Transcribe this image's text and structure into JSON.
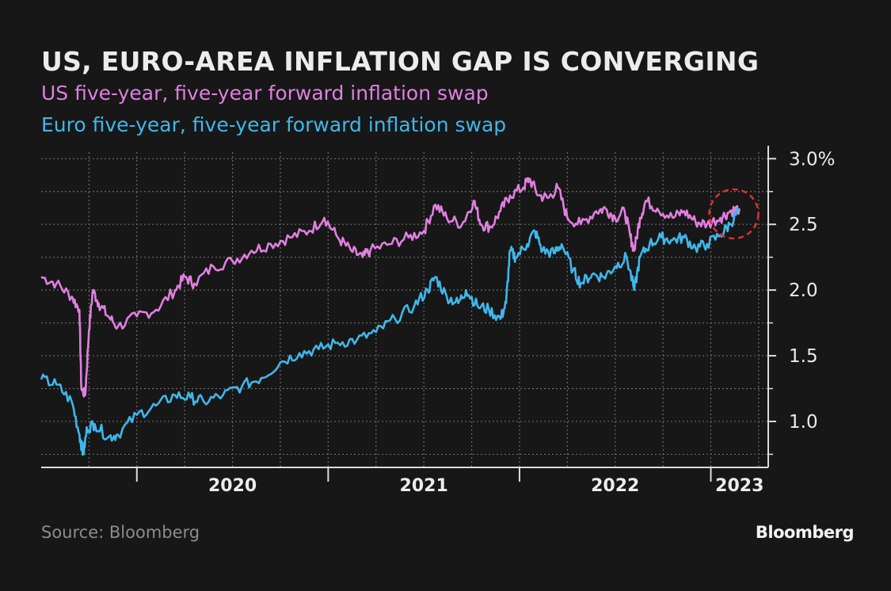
{
  "header": {
    "title": "US, EURO-AREA INFLATION GAP IS CONVERGING"
  },
  "footer": {
    "source": "Source: Bloomberg",
    "logo_text": "Bloomberg"
  },
  "colors": {
    "background": "#171717",
    "us_series": "#e07fe0",
    "euro_series": "#3fb7ea",
    "highlight_circle": "#e0302a",
    "grid": "#6a6a6a",
    "text": "#ececec"
  },
  "chart_data": {
    "type": "line",
    "x_axis": {
      "labels": [
        "2020",
        "2021",
        "2022",
        "2023"
      ],
      "year_starts": [
        2020,
        2021,
        2022,
        2023
      ],
      "range": [
        2019.5,
        2023.3
      ]
    },
    "y_axis": {
      "position": "right",
      "range": [
        0.65,
        3.05
      ],
      "ticks": [
        1.0,
        1.5,
        2.0,
        2.5,
        3.0
      ],
      "tick_labels": [
        "1.0",
        "1.5",
        "2.0",
        "2.5",
        "3.0%"
      ]
    },
    "grid": true,
    "legend": "subtitle-colored-text",
    "series": [
      {
        "name": "US five-year, five-year forward inflation swap",
        "color": "#e07fe0",
        "points": [
          [
            2019.5,
            2.1
          ],
          [
            2019.58,
            2.05
          ],
          [
            2019.66,
            1.95
          ],
          [
            2019.7,
            1.85
          ],
          [
            2019.71,
            1.25
          ],
          [
            2019.73,
            1.2
          ],
          [
            2019.75,
            1.7
          ],
          [
            2019.77,
            2.0
          ],
          [
            2019.8,
            1.9
          ],
          [
            2019.85,
            1.8
          ],
          [
            2019.9,
            1.72
          ],
          [
            2020.0,
            1.8
          ],
          [
            2020.1,
            1.85
          ],
          [
            2020.2,
            2.0
          ],
          [
            2020.25,
            2.1
          ],
          [
            2020.3,
            2.05
          ],
          [
            2020.4,
            2.18
          ],
          [
            2020.5,
            2.22
          ],
          [
            2020.6,
            2.3
          ],
          [
            2020.7,
            2.35
          ],
          [
            2020.8,
            2.4
          ],
          [
            2020.9,
            2.45
          ],
          [
            2020.98,
            2.55
          ],
          [
            2021.05,
            2.4
          ],
          [
            2021.12,
            2.3
          ],
          [
            2021.18,
            2.25
          ],
          [
            2021.22,
            2.3
          ],
          [
            2021.32,
            2.35
          ],
          [
            2021.42,
            2.4
          ],
          [
            2021.5,
            2.45
          ],
          [
            2021.56,
            2.65
          ],
          [
            2021.62,
            2.55
          ],
          [
            2021.7,
            2.5
          ],
          [
            2021.76,
            2.68
          ],
          [
            2021.8,
            2.5
          ],
          [
            2021.85,
            2.48
          ],
          [
            2021.9,
            2.6
          ],
          [
            2021.95,
            2.72
          ],
          [
            2022.02,
            2.78
          ],
          [
            2022.05,
            2.85
          ],
          [
            2022.1,
            2.72
          ],
          [
            2022.15,
            2.7
          ],
          [
            2022.2,
            2.78
          ],
          [
            2022.25,
            2.55
          ],
          [
            2022.32,
            2.5
          ],
          [
            2022.4,
            2.6
          ],
          [
            2022.45,
            2.62
          ],
          [
            2022.5,
            2.55
          ],
          [
            2022.55,
            2.6
          ],
          [
            2022.58,
            2.4
          ],
          [
            2022.6,
            2.3
          ],
          [
            2022.63,
            2.55
          ],
          [
            2022.66,
            2.68
          ],
          [
            2022.72,
            2.62
          ],
          [
            2022.8,
            2.55
          ],
          [
            2022.86,
            2.6
          ],
          [
            2022.92,
            2.52
          ],
          [
            2022.98,
            2.5
          ],
          [
            2023.05,
            2.55
          ],
          [
            2023.1,
            2.6
          ],
          [
            2023.15,
            2.62
          ]
        ]
      },
      {
        "name": "Euro five-year, five-year forward inflation swap",
        "color": "#3fb7ea",
        "points": [
          [
            2019.5,
            1.32
          ],
          [
            2019.58,
            1.28
          ],
          [
            2019.66,
            1.15
          ],
          [
            2019.7,
            0.9
          ],
          [
            2019.72,
            0.75
          ],
          [
            2019.74,
            0.95
          ],
          [
            2019.78,
            0.98
          ],
          [
            2019.85,
            0.88
          ],
          [
            2019.9,
            0.9
          ],
          [
            2020.0,
            1.05
          ],
          [
            2020.1,
            1.12
          ],
          [
            2020.2,
            1.2
          ],
          [
            2020.28,
            1.18
          ],
          [
            2020.35,
            1.15
          ],
          [
            2020.45,
            1.2
          ],
          [
            2020.55,
            1.27
          ],
          [
            2020.65,
            1.33
          ],
          [
            2020.75,
            1.45
          ],
          [
            2020.85,
            1.52
          ],
          [
            2020.95,
            1.55
          ],
          [
            2021.05,
            1.6
          ],
          [
            2021.15,
            1.62
          ],
          [
            2021.25,
            1.68
          ],
          [
            2021.35,
            1.78
          ],
          [
            2021.45,
            1.88
          ],
          [
            2021.52,
            2.0
          ],
          [
            2021.56,
            2.1
          ],
          [
            2021.62,
            1.95
          ],
          [
            2021.68,
            1.9
          ],
          [
            2021.72,
            2.0
          ],
          [
            2021.78,
            1.88
          ],
          [
            2021.84,
            1.85
          ],
          [
            2021.9,
            1.78
          ],
          [
            2021.93,
            1.9
          ],
          [
            2021.95,
            2.3
          ],
          [
            2021.98,
            2.25
          ],
          [
            2022.04,
            2.35
          ],
          [
            2022.08,
            2.45
          ],
          [
            2022.12,
            2.3
          ],
          [
            2022.18,
            2.28
          ],
          [
            2022.22,
            2.35
          ],
          [
            2022.28,
            2.15
          ],
          [
            2022.32,
            2.05
          ],
          [
            2022.38,
            2.12
          ],
          [
            2022.44,
            2.1
          ],
          [
            2022.5,
            2.18
          ],
          [
            2022.56,
            2.25
          ],
          [
            2022.6,
            2.0
          ],
          [
            2022.63,
            2.25
          ],
          [
            2022.68,
            2.35
          ],
          [
            2022.74,
            2.4
          ],
          [
            2022.8,
            2.38
          ],
          [
            2022.86,
            2.4
          ],
          [
            2022.92,
            2.32
          ],
          [
            2022.98,
            2.35
          ],
          [
            2023.05,
            2.42
          ],
          [
            2023.1,
            2.5
          ],
          [
            2023.15,
            2.62
          ]
        ]
      }
    ],
    "highlight": {
      "shape": "dashed-circle",
      "center": [
        2023.12,
        2.58
      ],
      "note": "convergence point"
    }
  }
}
